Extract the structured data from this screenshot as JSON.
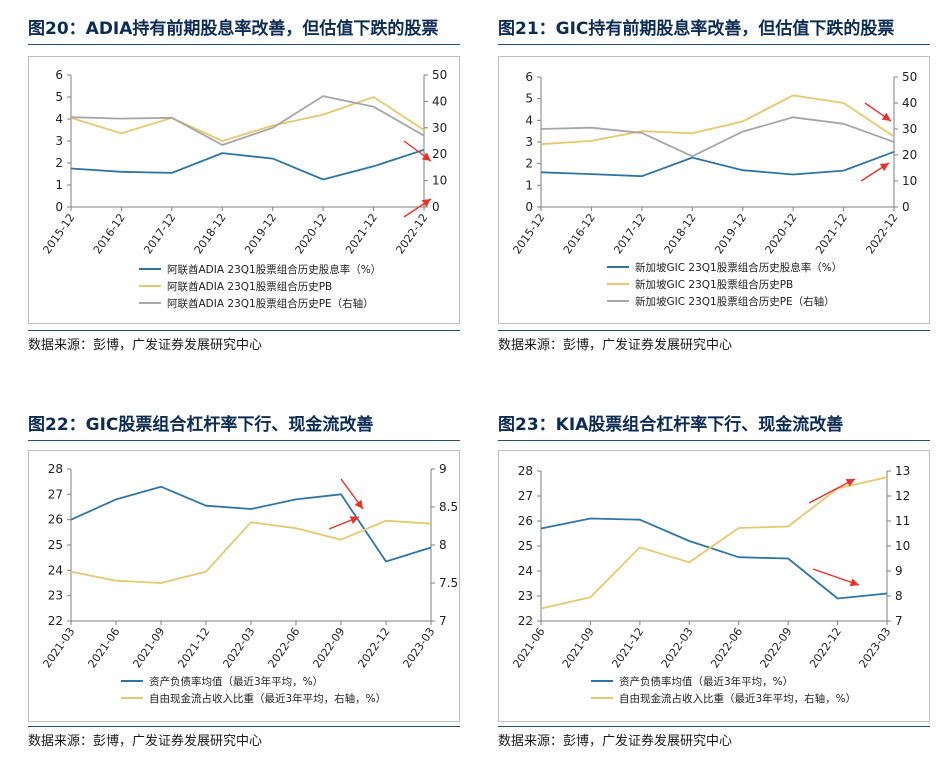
{
  "colors": {
    "blue": "#2e75a6",
    "yellow": "#e6c86e",
    "gray": "#a6a6a6",
    "arrow": "#e8312a",
    "title": "#0d2c54"
  },
  "panels": [
    {
      "title": "图20：ADIA持有前期股息率改善，但估值下跌的股票",
      "source": "数据来源：彭博，广发证券发展研究中心"
    },
    {
      "title": "图21：GIC持有前期股息率改善，但估值下跌的股票",
      "source": "数据来源：彭博，广发证券发展研究中心"
    },
    {
      "title": "图22：GIC股票组合杠杆率下行、现金流改善",
      "source": "数据来源：彭博，广发证券发展研究中心"
    },
    {
      "title": "图23：KIA股票组合杠杆率下行、现金流改善",
      "source": "数据来源：彭博，广发证券发展研究中心"
    }
  ],
  "chart_data": [
    {
      "type": "line",
      "categories": [
        "2015-12",
        "2016-12",
        "2017-12",
        "2018-12",
        "2019-12",
        "2020-12",
        "2021-12",
        "2022-12"
      ],
      "ylim": [
        0,
        6
      ],
      "yticks": [
        "0",
        "1",
        "2",
        "3",
        "4",
        "5",
        "6"
      ],
      "y2lim": [
        0,
        50
      ],
      "y2ticks": [
        "0",
        "10",
        "20",
        "30",
        "40",
        "50"
      ],
      "series": [
        {
          "name": "阿联酋ADIA 23Q1股票组合历史股息率（%）",
          "axis": "left",
          "color": "#2e75a6",
          "values": [
            1.75,
            1.6,
            1.55,
            2.45,
            2.2,
            1.25,
            1.85,
            2.6
          ]
        },
        {
          "name": "阿联酋ADIA 23Q1股票组合历史PB",
          "axis": "left",
          "color": "#e6c86e",
          "values": [
            4.05,
            3.35,
            4.05,
            3.0,
            3.7,
            4.2,
            5.0,
            3.5
          ]
        },
        {
          "name": "阿联酋ADIA 23Q1股票组合历史PE（右轴）",
          "axis": "right",
          "color": "#a6a6a6",
          "values": [
            34,
            33.5,
            33.8,
            23.5,
            30,
            42,
            38,
            27
          ]
        }
      ],
      "annotations": [
        "arrow-down",
        "arrow-up"
      ]
    },
    {
      "type": "line",
      "categories": [
        "2015-12",
        "2016-12",
        "2017-12",
        "2018-12",
        "2019-12",
        "2020-12",
        "2021-12",
        "2022-12"
      ],
      "ylim": [
        0,
        6
      ],
      "yticks": [
        "0",
        "1",
        "2",
        "3",
        "4",
        "5",
        "6"
      ],
      "y2lim": [
        0,
        50
      ],
      "y2ticks": [
        "0",
        "10",
        "20",
        "30",
        "40",
        "50"
      ],
      "series": [
        {
          "name": "新加坡GIC 23Q1股票组合历史股息率（%）",
          "axis": "left",
          "color": "#2e75a6",
          "values": [
            1.6,
            1.52,
            1.42,
            2.28,
            1.7,
            1.5,
            1.68,
            2.55
          ]
        },
        {
          "name": "新加坡GIC 23Q1股票组合历史PB",
          "axis": "left",
          "color": "#e6c86e",
          "values": [
            2.9,
            3.05,
            3.5,
            3.4,
            3.95,
            5.15,
            4.8,
            3.25
          ]
        },
        {
          "name": "新加坡GIC 23Q1股票组合历史PE（右轴）",
          "axis": "right",
          "color": "#a6a6a6",
          "values": [
            30,
            30.5,
            28.5,
            19.5,
            29,
            34.5,
            32,
            25
          ]
        }
      ],
      "annotations": [
        "arrow-down",
        "arrow-up"
      ]
    },
    {
      "type": "line",
      "categories": [
        "2021-03",
        "2021-06",
        "2021-09",
        "2021-12",
        "2022-03",
        "2022-06",
        "2022-09",
        "2022-12",
        "2023-03"
      ],
      "ylim": [
        22,
        28
      ],
      "yticks": [
        "22",
        "23",
        "24",
        "25",
        "26",
        "27",
        "28"
      ],
      "y2lim": [
        7,
        9
      ],
      "y2ticks": [
        "7",
        "7.5",
        "8",
        "8.5",
        "9"
      ],
      "series": [
        {
          "name": "资产负债率均值（最近3年平均，%）",
          "axis": "left",
          "color": "#2e75a6",
          "values": [
            26.0,
            26.8,
            27.3,
            26.55,
            26.42,
            26.8,
            27.0,
            24.35,
            24.9
          ]
        },
        {
          "name": "自由现金流占收入比重（最近3年平均，右轴，%）",
          "axis": "right",
          "color": "#e6c86e",
          "values": [
            7.65,
            7.53,
            7.5,
            7.65,
            8.3,
            8.22,
            8.07,
            8.32,
            8.28
          ]
        }
      ],
      "annotations": [
        "arrow-down",
        "arrow-up"
      ]
    },
    {
      "type": "line",
      "categories": [
        "2021-06",
        "2021-09",
        "2021-12",
        "2022-03",
        "2022-06",
        "2022-09",
        "2022-12",
        "2023-03"
      ],
      "ylim": [
        22,
        28
      ],
      "yticks": [
        "22",
        "23",
        "24",
        "25",
        "26",
        "27",
        "28"
      ],
      "y2lim": [
        7,
        13
      ],
      "y2ticks": [
        "7",
        "8",
        "9",
        "10",
        "11",
        "12",
        "13"
      ],
      "series": [
        {
          "name": "资产负债率均值（最近3年平均，%）",
          "axis": "left",
          "color": "#2e75a6",
          "values": [
            25.7,
            26.1,
            26.05,
            25.2,
            24.55,
            24.5,
            22.9,
            23.1
          ]
        },
        {
          "name": "自由现金流占收入比重（最近3年平均，右轴，%）",
          "axis": "right",
          "color": "#e6c86e",
          "values": [
            7.5,
            7.95,
            9.95,
            9.35,
            10.72,
            10.78,
            12.3,
            12.75
          ]
        }
      ],
      "annotations": [
        "arrow-up",
        "arrow-down"
      ]
    }
  ]
}
